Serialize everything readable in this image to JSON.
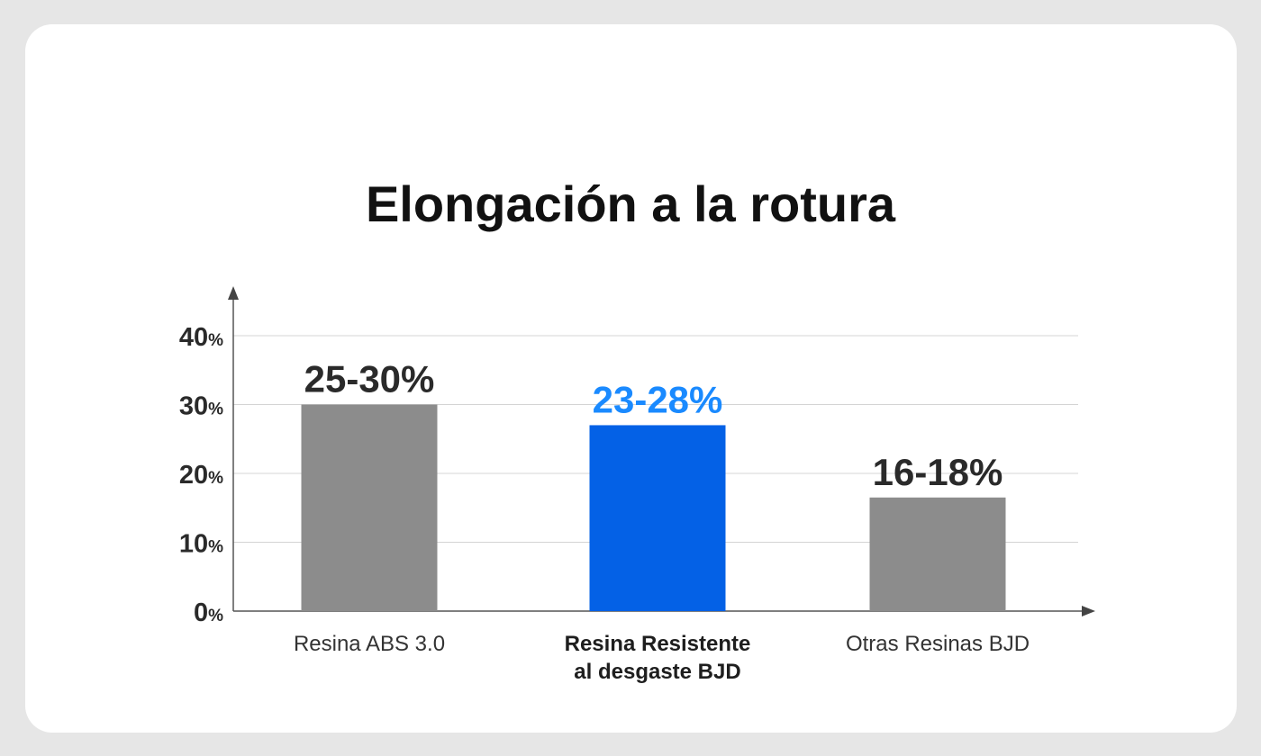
{
  "chart_data": {
    "type": "bar",
    "title": "Elongación a la rotura",
    "ylim": [
      0,
      40
    ],
    "ytick_unit": "%",
    "yticks": [
      {
        "num": "0",
        "value": 0
      },
      {
        "num": "10",
        "value": 10
      },
      {
        "num": "20",
        "value": 20
      },
      {
        "num": "30",
        "value": 30
      },
      {
        "num": "40",
        "value": 40
      }
    ],
    "grid": true,
    "bars": [
      {
        "category": [
          "Resina ABS 3.0"
        ],
        "value": 30,
        "data_label": "25-30%",
        "color": "#8c8c8c",
        "label_color": "#2a2a2a",
        "highlight": false
      },
      {
        "category": [
          "Resina Resistente",
          "al desgaste BJD"
        ],
        "value": 27,
        "data_label": "23-28%",
        "color": "#0461e6",
        "label_color": "#1a8aff",
        "highlight": true
      },
      {
        "category": [
          "Otras Resinas BJD"
        ],
        "value": 16.5,
        "data_label": "16-18%",
        "color": "#8c8c8c",
        "label_color": "#2a2a2a",
        "highlight": false
      }
    ]
  }
}
